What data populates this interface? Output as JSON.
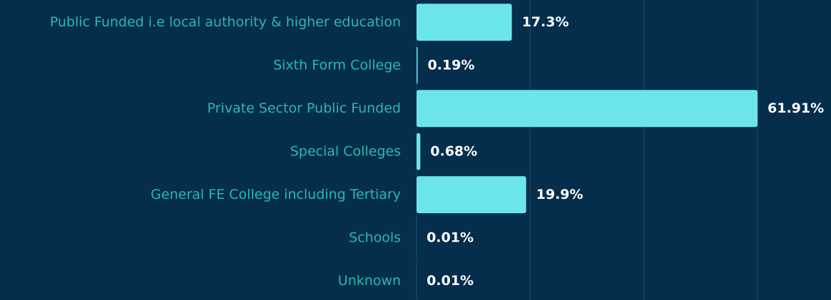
{
  "chart_data": {
    "type": "bar",
    "orientation": "horizontal",
    "categories": [
      "Public Funded i.e local authority & higher education",
      "Sixth Form College",
      "Private Sector Public Funded",
      "Special Colleges",
      "General FE College including Tertiary",
      "Schools",
      "Unknown"
    ],
    "values": [
      17.3,
      0.19,
      61.91,
      0.68,
      19.9,
      0.01,
      0.01
    ],
    "value_labels": [
      "17.3%",
      "0.19%",
      "61.91%",
      "0.68%",
      "19.9%",
      "0.01%",
      "0.01%"
    ],
    "color": "#6ce5ea",
    "xlim": [
      0,
      61.91
    ],
    "xticks": [
      0,
      20.64,
      41.27,
      61.91
    ],
    "grid": true
  }
}
